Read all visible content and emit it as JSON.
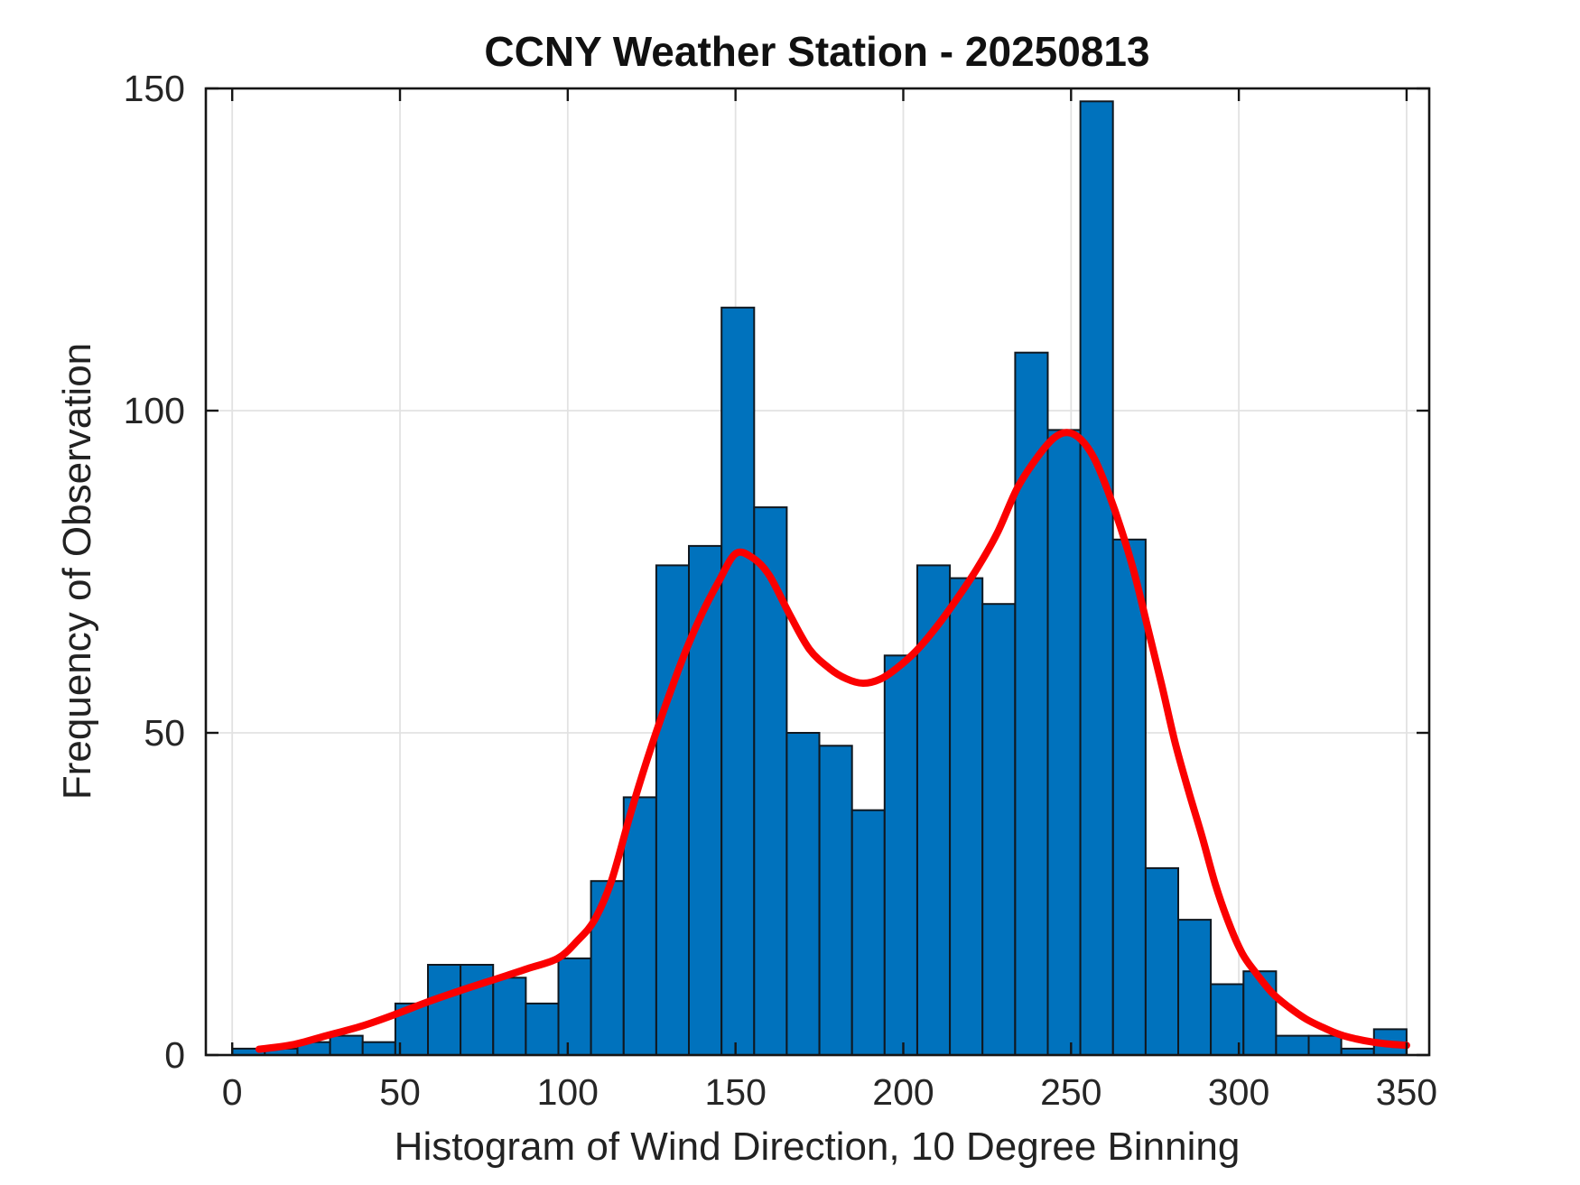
{
  "title": "CCNY Weather Station - 20250813",
  "xlabel": "Histogram of Wind Direction, 10 Degree Binning",
  "ylabel": "Frequency of Observation",
  "chart_data": {
    "type": "bar",
    "subtype": "histogram-with-fit-curve",
    "title": "CCNY Weather Station - 20250813",
    "xlabel": "Histogram of Wind Direction, 10 Degree Binning",
    "ylabel": "Frequency of Observation",
    "grid": true,
    "legend": "none",
    "xlim": [
      -7.9,
      356.9
    ],
    "ylim": [
      0,
      150
    ],
    "x_ticks": [
      0,
      50,
      100,
      150,
      200,
      250,
      300,
      350
    ],
    "y_ticks": [
      0,
      50,
      100,
      150
    ],
    "bins": 36,
    "bin_range_deg": [
      0,
      350
    ],
    "nominal_bin_width_deg": 10,
    "counts": [
      1,
      1,
      2,
      3,
      2,
      8,
      14,
      14,
      12,
      8,
      15,
      27,
      40,
      76,
      79,
      116,
      85,
      50,
      48,
      38,
      62,
      76,
      74,
      70,
      109,
      97,
      148,
      80,
      29,
      21,
      11,
      13,
      3,
      3,
      1,
      4
    ],
    "fit_curve": {
      "name": "bimodal-fit-line",
      "peak1": {
        "x": 150,
        "y": 77.8
      },
      "valley": {
        "x": 188,
        "y": 57.7
      },
      "peak2": {
        "x": 248,
        "y": 96.6
      },
      "points": [
        [
          8,
          0.9
        ],
        [
          18,
          1.6
        ],
        [
          28,
          3.0
        ],
        [
          38,
          4.4
        ],
        [
          48,
          6.2
        ],
        [
          58,
          8.2
        ],
        [
          68,
          10.0
        ],
        [
          78,
          11.7
        ],
        [
          88,
          13.4
        ],
        [
          97,
          15.0
        ],
        [
          103,
          17.8
        ],
        [
          108,
          21.0
        ],
        [
          113,
          27.0
        ],
        [
          119,
          38.0
        ],
        [
          125,
          48.0
        ],
        [
          130,
          55.5
        ],
        [
          135,
          62.5
        ],
        [
          140,
          68.5
        ],
        [
          145,
          73.5
        ],
        [
          150,
          77.8
        ],
        [
          155,
          77.2
        ],
        [
          160,
          74.5
        ],
        [
          166,
          68.5
        ],
        [
          172,
          63.0
        ],
        [
          178,
          60.0
        ],
        [
          183,
          58.4
        ],
        [
          188,
          57.7
        ],
        [
          193,
          58.3
        ],
        [
          198,
          60.0
        ],
        [
          204,
          62.8
        ],
        [
          210,
          66.5
        ],
        [
          216,
          70.8
        ],
        [
          222,
          75.5
        ],
        [
          228,
          81.0
        ],
        [
          234,
          88.0
        ],
        [
          240,
          92.8
        ],
        [
          245,
          95.8
        ],
        [
          249,
          96.6
        ],
        [
          253,
          95.5
        ],
        [
          257,
          92.5
        ],
        [
          261,
          87.5
        ],
        [
          265,
          81.5
        ],
        [
          269,
          74.5
        ],
        [
          273,
          66.0
        ],
        [
          277,
          57.5
        ],
        [
          281,
          48.5
        ],
        [
          285,
          41.0
        ],
        [
          289,
          34.0
        ],
        [
          293,
          26.5
        ],
        [
          297,
          20.5
        ],
        [
          301,
          15.8
        ],
        [
          305,
          12.8
        ],
        [
          310,
          9.6
        ],
        [
          315,
          7.4
        ],
        [
          320,
          5.6
        ],
        [
          325,
          4.3
        ],
        [
          330,
          3.2
        ],
        [
          335,
          2.5
        ],
        [
          340,
          2.0
        ],
        [
          345,
          1.7
        ],
        [
          350,
          1.5
        ]
      ]
    },
    "colors": {
      "bar_fill": "#0072BD",
      "bar_edge": "#101820",
      "fit_line": "#FB0000",
      "grid": "#e2e2e2",
      "axis": "#151515",
      "background": "#ffffff"
    }
  }
}
